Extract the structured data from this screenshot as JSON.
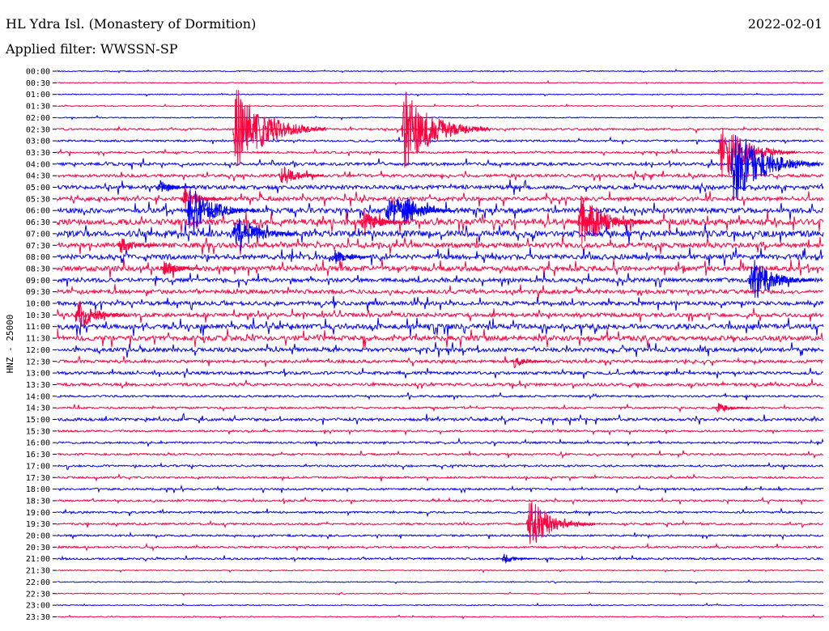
{
  "header": {
    "station": "HL Ydra Isl. (Monastery of Dormition)",
    "date": "2022-02-01",
    "filter": "Applied filter: WWSSN-SP"
  },
  "chart_data": {
    "type": "line",
    "title": "HL Ydra Isl. (Monastery of Dormition)",
    "ylabel": "HNZ - 25000",
    "series_colors": [
      "#0000ff",
      "#ff0040"
    ],
    "tick_labels": [
      "00:00",
      "00:30",
      "01:00",
      "01:30",
      "02:00",
      "02:30",
      "03:00",
      "03:30",
      "04:00",
      "04:30",
      "05:00",
      "05:30",
      "06:00",
      "06:30",
      "07:00",
      "07:30",
      "08:00",
      "08:30",
      "09:00",
      "09:30",
      "10:00",
      "10:30",
      "11:00",
      "11:30",
      "12:00",
      "12:30",
      "13:00",
      "13:30",
      "14:00",
      "14:30",
      "15:00",
      "15:30",
      "16:00",
      "16:30",
      "17:00",
      "17:30",
      "18:00",
      "18:30",
      "19:00",
      "19:30",
      "20:00",
      "20:30",
      "21:00",
      "21:30",
      "22:00",
      "22:30",
      "23:00",
      "23:30"
    ],
    "noise_level": [
      1,
      1,
      1,
      1,
      1,
      2,
      2,
      2,
      3,
      3,
      4,
      4,
      5,
      6,
      6,
      5,
      5,
      5,
      4,
      4,
      4,
      4,
      5,
      5,
      4,
      3,
      3,
      3,
      2,
      2,
      3,
      2,
      2,
      2,
      2,
      2,
      2,
      2,
      2,
      2,
      2,
      2,
      2,
      1,
      1,
      1,
      1,
      1
    ],
    "events": [
      {
        "trace": "02:30",
        "minute": 7.0,
        "amplitude": 8.5
      },
      {
        "trace": "02:30",
        "minute": 13.6,
        "amplitude": 8.0
      },
      {
        "trace": "03:30",
        "minute": 26.0,
        "amplitude": 6.5
      },
      {
        "trace": "04:00",
        "minute": 26.5,
        "amplitude": 8.0
      },
      {
        "trace": "04:30",
        "minute": 8.8,
        "amplitude": 2.5
      },
      {
        "trace": "05:00",
        "minute": 4.0,
        "amplitude": 1.8
      },
      {
        "trace": "05:30",
        "minute": 5.0,
        "amplitude": 2.5
      },
      {
        "trace": "06:00",
        "minute": 5.2,
        "amplitude": 5.5
      },
      {
        "trace": "06:00",
        "minute": 13.6,
        "amplitude": 3.5
      },
      {
        "trace": "06:00",
        "minute": 13.0,
        "amplitude": 4.0
      },
      {
        "trace": "06:30",
        "minute": 12.0,
        "amplitude": 3.0
      },
      {
        "trace": "06:30",
        "minute": 20.5,
        "amplitude": 6.0
      },
      {
        "trace": "07:00",
        "minute": 7.0,
        "amplitude": 4.5
      },
      {
        "trace": "07:30",
        "minute": 2.5,
        "amplitude": 2.0
      },
      {
        "trace": "08:00",
        "minute": 10.8,
        "amplitude": 2.0
      },
      {
        "trace": "08:30",
        "minute": 4.2,
        "amplitude": 2.0
      },
      {
        "trace": "09:00",
        "minute": 27.2,
        "amplitude": 5.0
      },
      {
        "trace": "10:30",
        "minute": 0.8,
        "amplitude": 3.5
      },
      {
        "trace": "12:30",
        "minute": 17.9,
        "amplitude": 1.5
      },
      {
        "trace": "14:30",
        "minute": 25.9,
        "amplitude": 1.2
      },
      {
        "trace": "19:30",
        "minute": 18.5,
        "amplitude": 5.5
      },
      {
        "trace": "21:00",
        "minute": 17.5,
        "amplitude": 1.2
      }
    ]
  }
}
